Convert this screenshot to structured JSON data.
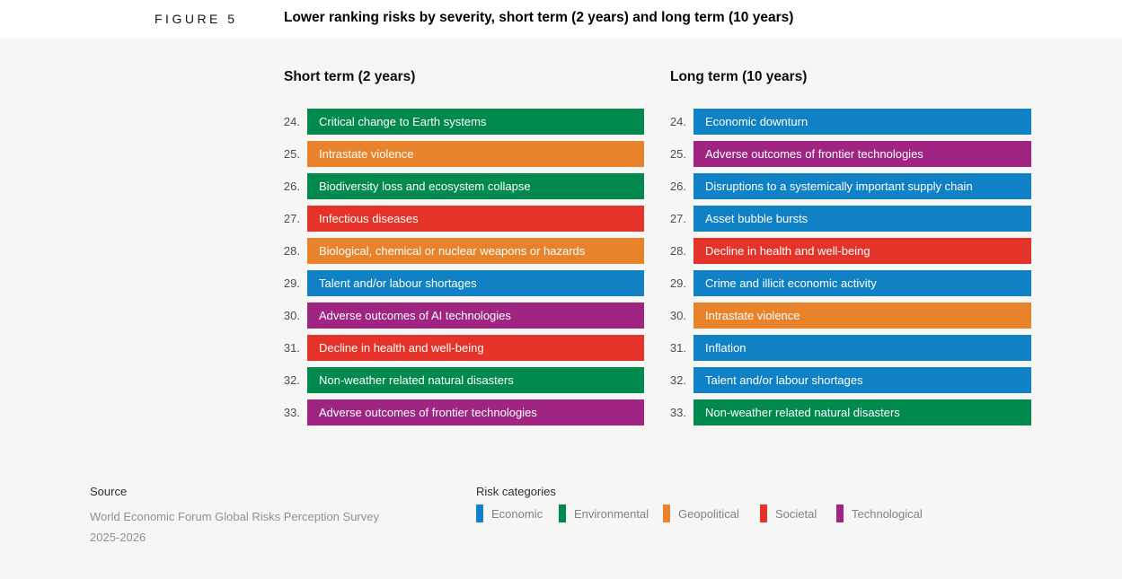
{
  "figure": {
    "label": "FIGURE 5",
    "title": "Lower ranking risks by severity, short term (2 years) and long term (10 years)"
  },
  "category_colors": {
    "Economic": "#0f81c4",
    "Environmental": "#02894d",
    "Geopolitical": "#e8832b",
    "Societal": "#e63329",
    "Technological": "#a02481"
  },
  "short_term": {
    "heading": "Short term (2 years)",
    "items": [
      {
        "rank": "24.",
        "label": "Critical change to Earth systems",
        "category": "Environmental"
      },
      {
        "rank": "25.",
        "label": "Intrastate violence",
        "category": "Geopolitical"
      },
      {
        "rank": "26.",
        "label": "Biodiversity loss and ecosystem collapse",
        "category": "Environmental"
      },
      {
        "rank": "27.",
        "label": "Infectious diseases",
        "category": "Societal"
      },
      {
        "rank": "28.",
        "label": "Biological, chemical or nuclear weapons or hazards",
        "category": "Geopolitical"
      },
      {
        "rank": "29.",
        "label": "Talent and/or labour shortages",
        "category": "Economic"
      },
      {
        "rank": "30.",
        "label": "Adverse outcomes of AI technologies",
        "category": "Technological"
      },
      {
        "rank": "31.",
        "label": "Decline in health and well-being",
        "category": "Societal"
      },
      {
        "rank": "32.",
        "label": "Non-weather related natural disasters",
        "category": "Environmental"
      },
      {
        "rank": "33.",
        "label": "Adverse outcomes of frontier technologies",
        "category": "Technological"
      }
    ]
  },
  "long_term": {
    "heading": "Long term (10 years)",
    "items": [
      {
        "rank": "24.",
        "label": "Economic downturn",
        "category": "Economic"
      },
      {
        "rank": "25.",
        "label": "Adverse outcomes of frontier technologies",
        "category": "Technological"
      },
      {
        "rank": "26.",
        "label": "Disruptions to a systemically important supply chain",
        "category": "Economic"
      },
      {
        "rank": "27.",
        "label": "Asset bubble bursts",
        "category": "Economic"
      },
      {
        "rank": "28.",
        "label": "Decline in health and well-being",
        "category": "Societal"
      },
      {
        "rank": "29.",
        "label": "Crime and illicit economic activity",
        "category": "Economic"
      },
      {
        "rank": "30.",
        "label": "Intrastate violence",
        "category": "Geopolitical"
      },
      {
        "rank": "31.",
        "label": "Inflation",
        "category": "Economic"
      },
      {
        "rank": "32.",
        "label": "Talent and/or labour shortages",
        "category": "Economic"
      },
      {
        "rank": "33.",
        "label": "Non-weather related natural disasters",
        "category": "Environmental"
      }
    ]
  },
  "legend": {
    "heading": "Risk categories",
    "items": [
      {
        "label": "Economic",
        "color": "#0f81c4"
      },
      {
        "label": "Environmental",
        "color": "#02894d"
      },
      {
        "label": "Geopolitical",
        "color": "#e8832b"
      },
      {
        "label": "Societal",
        "color": "#e63329"
      },
      {
        "label": "Technological",
        "color": "#a02481"
      }
    ]
  },
  "source": {
    "heading": "Source",
    "line1": "World Economic Forum Global Risks Perception Survey",
    "line2": "2025-2026"
  },
  "chart_data": {
    "type": "table",
    "title": "Lower ranking risks by severity, short term (2 years) and long term (10 years)",
    "figure_label": "FIGURE 5",
    "legend_position": "bottom",
    "legend": [
      "Economic",
      "Environmental",
      "Geopolitical",
      "Societal",
      "Technological"
    ],
    "category_colors": {
      "Economic": "#0f81c4",
      "Environmental": "#02894d",
      "Geopolitical": "#e8832b",
      "Societal": "#e63329",
      "Technological": "#a02481"
    },
    "panels": [
      {
        "name": "Short term (2 years)",
        "ranks": [
          24,
          25,
          26,
          27,
          28,
          29,
          30,
          31,
          32,
          33
        ],
        "risks": [
          "Critical change to Earth systems",
          "Intrastate violence",
          "Biodiversity loss and ecosystem collapse",
          "Infectious diseases",
          "Biological, chemical or nuclear weapons or hazards",
          "Talent and/or labour shortages",
          "Adverse outcomes of AI technologies",
          "Decline in health and well-being",
          "Non-weather related natural disasters",
          "Adverse outcomes of frontier technologies"
        ],
        "categories": [
          "Environmental",
          "Geopolitical",
          "Environmental",
          "Societal",
          "Geopolitical",
          "Economic",
          "Technological",
          "Societal",
          "Environmental",
          "Technological"
        ]
      },
      {
        "name": "Long term (10 years)",
        "ranks": [
          24,
          25,
          26,
          27,
          28,
          29,
          30,
          31,
          32,
          33
        ],
        "risks": [
          "Economic downturn",
          "Adverse outcomes of frontier technologies",
          "Disruptions to a systemically important supply chain",
          "Asset bubble bursts",
          "Decline in health and well-being",
          "Crime and illicit economic activity",
          "Intrastate violence",
          "Inflation",
          "Talent and/or labour shortages",
          "Non-weather related natural disasters"
        ],
        "categories": [
          "Economic",
          "Technological",
          "Economic",
          "Economic",
          "Societal",
          "Economic",
          "Geopolitical",
          "Economic",
          "Economic",
          "Environmental"
        ]
      }
    ],
    "source": "World Economic Forum Global Risks Perception Survey 2025-2026"
  }
}
